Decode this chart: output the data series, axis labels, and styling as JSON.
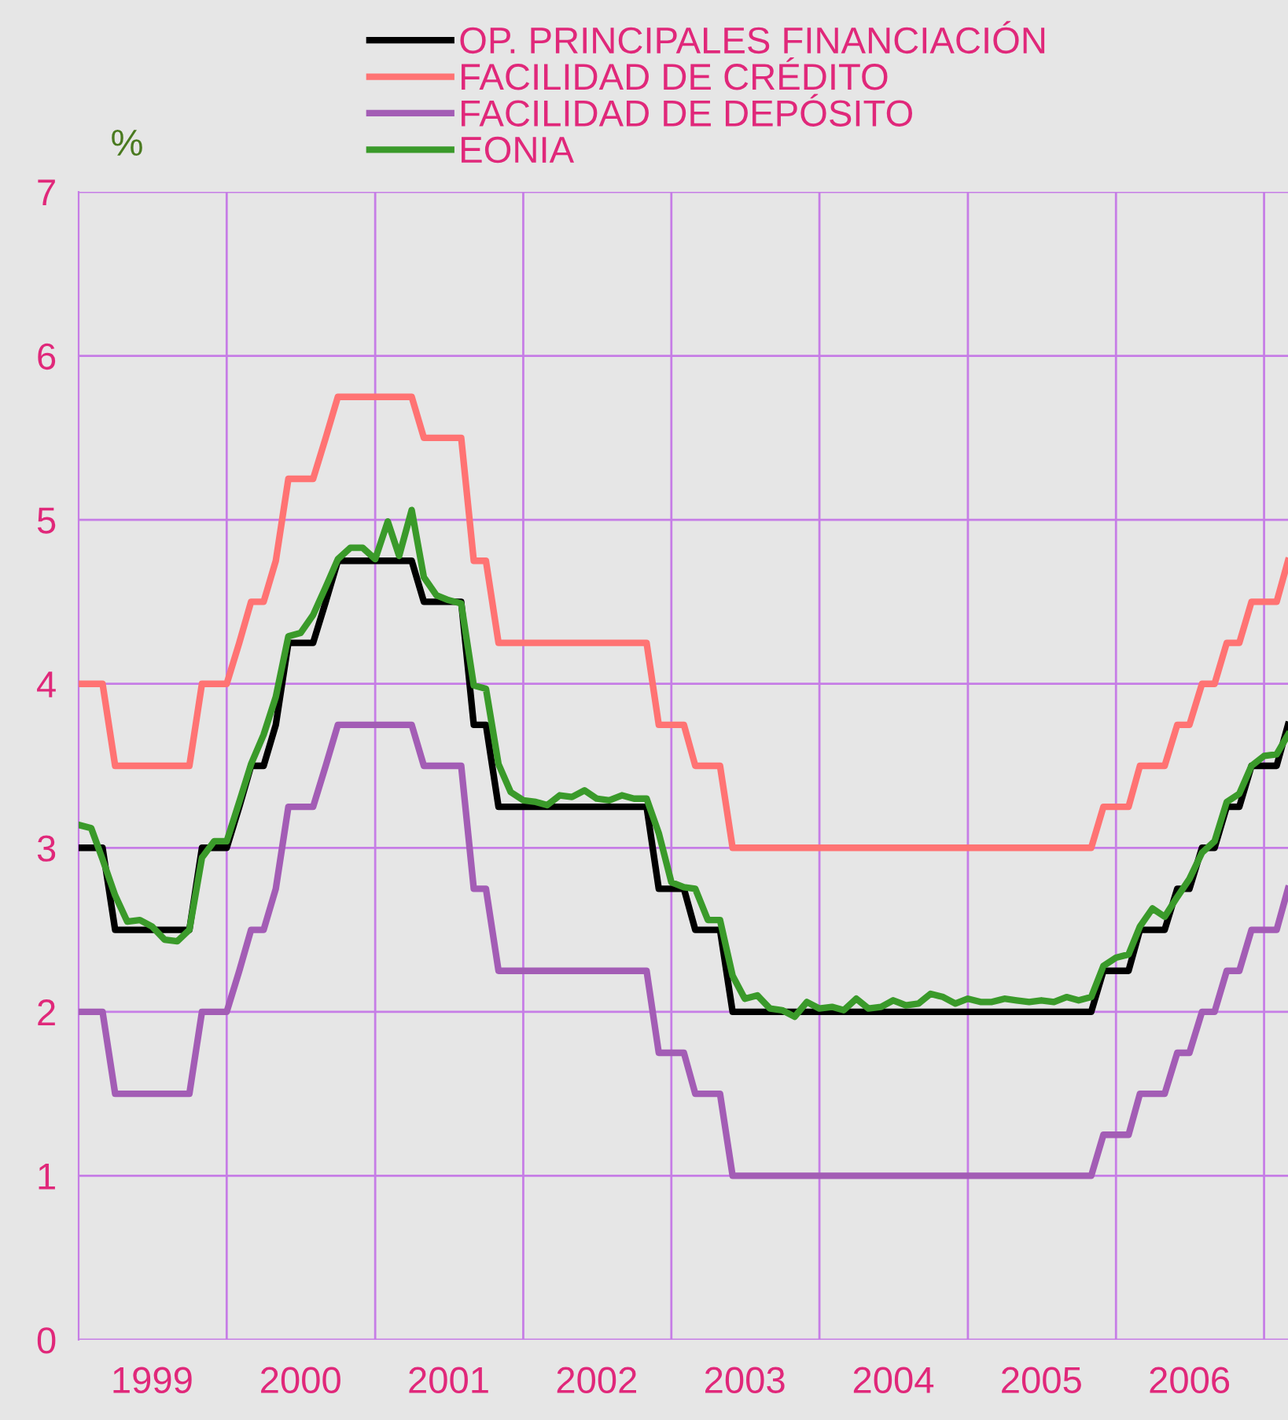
{
  "chart_data": {
    "type": "line",
    "ylabel": "%",
    "x": [
      "1999-01",
      "1999-02",
      "1999-03",
      "1999-04",
      "1999-05",
      "1999-06",
      "1999-07",
      "1999-08",
      "1999-09",
      "1999-10",
      "1999-11",
      "1999-12",
      "2000-01",
      "2000-02",
      "2000-03",
      "2000-04",
      "2000-05",
      "2000-06",
      "2000-07",
      "2000-08",
      "2000-09",
      "2000-10",
      "2000-11",
      "2000-12",
      "2001-01",
      "2001-02",
      "2001-03",
      "2001-04",
      "2001-05",
      "2001-06",
      "2001-07",
      "2001-08",
      "2001-09",
      "2001-10",
      "2001-11",
      "2001-12",
      "2002-01",
      "2002-02",
      "2002-03",
      "2002-04",
      "2002-05",
      "2002-06",
      "2002-07",
      "2002-08",
      "2002-09",
      "2002-10",
      "2002-11",
      "2002-12",
      "2003-01",
      "2003-02",
      "2003-03",
      "2003-04",
      "2003-05",
      "2003-06",
      "2003-07",
      "2003-08",
      "2003-09",
      "2003-10",
      "2003-11",
      "2003-12",
      "2004-01",
      "2004-02",
      "2004-03",
      "2004-04",
      "2004-05",
      "2004-06",
      "2004-07",
      "2004-08",
      "2004-09",
      "2004-10",
      "2004-11",
      "2004-12",
      "2005-01",
      "2005-02",
      "2005-03",
      "2005-04",
      "2005-05",
      "2005-06",
      "2005-07",
      "2005-08",
      "2005-09",
      "2005-10",
      "2005-11",
      "2005-12",
      "2006-01",
      "2006-02",
      "2006-03",
      "2006-04",
      "2006-05",
      "2006-06",
      "2006-07",
      "2006-08",
      "2006-09",
      "2006-10",
      "2006-11",
      "2006-12",
      "2007-01",
      "2007-02",
      "2007-03"
    ],
    "series": [
      {
        "name": "OP. PRINCIPALES FINANCIACIÓN",
        "color": "#000000",
        "x": [
          "1999-01",
          "1999-03",
          "1999-04",
          "1999-10",
          "1999-11",
          "2000-01",
          "2000-02",
          "2000-03",
          "2000-04",
          "2000-05",
          "2000-06",
          "2000-08",
          "2000-09",
          "2000-10",
          "2001-04",
          "2001-05",
          "2001-08",
          "2001-09",
          "2001-10",
          "2001-11",
          "2002-11",
          "2002-12",
          "2003-02",
          "2003-03",
          "2003-05",
          "2003-06",
          "2005-11",
          "2005-12",
          "2006-02",
          "2006-03",
          "2006-05",
          "2006-06",
          "2006-07",
          "2006-08",
          "2006-09",
          "2006-10",
          "2006-11",
          "2006-12",
          "2007-02",
          "2007-03"
        ],
        "values": [
          3.0,
          3.0,
          2.5,
          2.5,
          3.0,
          3.0,
          3.25,
          3.5,
          3.5,
          3.75,
          4.25,
          4.25,
          4.5,
          4.75,
          4.75,
          4.5,
          4.5,
          3.75,
          3.75,
          3.25,
          3.25,
          2.75,
          2.75,
          2.5,
          2.5,
          2.0,
          2.0,
          2.25,
          2.25,
          2.5,
          2.5,
          2.75,
          2.75,
          3.0,
          3.0,
          3.25,
          3.25,
          3.5,
          3.5,
          3.75
        ]
      },
      {
        "name": "FACILIDAD DE CRÉDITO",
        "color": "#ff7373",
        "x": [
          "1999-01",
          "1999-03",
          "1999-04",
          "1999-10",
          "1999-11",
          "2000-01",
          "2000-02",
          "2000-03",
          "2000-04",
          "2000-05",
          "2000-06",
          "2000-08",
          "2000-09",
          "2000-10",
          "2001-04",
          "2001-05",
          "2001-08",
          "2001-09",
          "2001-10",
          "2001-11",
          "2002-11",
          "2002-12",
          "2003-02",
          "2003-03",
          "2003-05",
          "2003-06",
          "2005-11",
          "2005-12",
          "2006-02",
          "2006-03",
          "2006-05",
          "2006-06",
          "2006-07",
          "2006-08",
          "2006-09",
          "2006-10",
          "2006-11",
          "2006-12",
          "2007-02",
          "2007-03"
        ],
        "values": [
          4.0,
          4.0,
          3.5,
          3.5,
          4.0,
          4.0,
          4.25,
          4.5,
          4.5,
          4.75,
          5.25,
          5.25,
          5.5,
          5.75,
          5.75,
          5.5,
          5.5,
          4.75,
          4.75,
          4.25,
          4.25,
          3.75,
          3.75,
          3.5,
          3.5,
          3.0,
          3.0,
          3.25,
          3.25,
          3.5,
          3.5,
          3.75,
          3.75,
          4.0,
          4.0,
          4.25,
          4.25,
          4.5,
          4.5,
          4.75
        ]
      },
      {
        "name": "FACILIDAD DE DEPÓSITO",
        "color": "#a35db5",
        "x": [
          "1999-01",
          "1999-03",
          "1999-04",
          "1999-10",
          "1999-11",
          "2000-01",
          "2000-02",
          "2000-03",
          "2000-04",
          "2000-05",
          "2000-06",
          "2000-08",
          "2000-09",
          "2000-10",
          "2001-04",
          "2001-05",
          "2001-08",
          "2001-09",
          "2001-10",
          "2001-11",
          "2002-11",
          "2002-12",
          "2003-02",
          "2003-03",
          "2003-05",
          "2003-06",
          "2005-11",
          "2005-12",
          "2006-02",
          "2006-03",
          "2006-05",
          "2006-06",
          "2006-07",
          "2006-08",
          "2006-09",
          "2006-10",
          "2006-11",
          "2006-12",
          "2007-02",
          "2007-03"
        ],
        "values": [
          2.0,
          2.0,
          1.5,
          1.5,
          2.0,
          2.0,
          2.25,
          2.5,
          2.5,
          2.75,
          3.25,
          3.25,
          3.5,
          3.75,
          3.75,
          3.5,
          3.5,
          2.75,
          2.75,
          2.25,
          2.25,
          1.75,
          1.75,
          1.5,
          1.5,
          1.0,
          1.0,
          1.25,
          1.25,
          1.5,
          1.5,
          1.75,
          1.75,
          2.0,
          2.0,
          2.25,
          2.25,
          2.5,
          2.5,
          2.75
        ]
      },
      {
        "name": "EONIA",
        "color": "#3a9a2a",
        "values": [
          3.14,
          3.12,
          2.93,
          2.71,
          2.55,
          2.56,
          2.52,
          2.44,
          2.43,
          2.5,
          2.94,
          3.04,
          3.04,
          3.28,
          3.51,
          3.69,
          3.92,
          4.29,
          4.31,
          4.42,
          4.59,
          4.76,
          4.83,
          4.83,
          4.76,
          4.99,
          4.78,
          5.06,
          4.65,
          4.54,
          4.51,
          4.49,
          3.99,
          3.97,
          3.51,
          3.34,
          3.29,
          3.28,
          3.26,
          3.32,
          3.31,
          3.35,
          3.3,
          3.29,
          3.32,
          3.3,
          3.3,
          3.09,
          2.79,
          2.76,
          2.75,
          2.56,
          2.56,
          2.22,
          2.08,
          2.1,
          2.02,
          2.01,
          1.97,
          2.06,
          2.02,
          2.03,
          2.01,
          2.08,
          2.02,
          2.03,
          2.07,
          2.04,
          2.05,
          2.11,
          2.09,
          2.05,
          2.08,
          2.06,
          2.06,
          2.08,
          2.07,
          2.06,
          2.07,
          2.06,
          2.09,
          2.07,
          2.09,
          2.28,
          2.33,
          2.35,
          2.52,
          2.63,
          2.58,
          2.7,
          2.81,
          2.97,
          3.04,
          3.28,
          3.33,
          3.5,
          3.56,
          3.57,
          3.69
        ]
      }
    ],
    "xlim": [
      "1999-01",
      "2007-03"
    ],
    "xticks": [
      {
        "value": "1999-07",
        "label": "1999"
      },
      {
        "value": "2000-01",
        "label": null
      },
      {
        "value": "2000-07",
        "label": "2000"
      },
      {
        "value": "2001-01",
        "label": null
      },
      {
        "value": "2001-07",
        "label": "2001"
      },
      {
        "value": "2002-01",
        "label": null
      },
      {
        "value": "2002-07",
        "label": "2002"
      },
      {
        "value": "2003-01",
        "label": null
      },
      {
        "value": "2003-07",
        "label": "2003"
      },
      {
        "value": "2004-01",
        "label": null
      },
      {
        "value": "2004-07",
        "label": "2004"
      },
      {
        "value": "2005-01",
        "label": null
      },
      {
        "value": "2005-07",
        "label": "2005"
      },
      {
        "value": "2006-01",
        "label": null
      },
      {
        "value": "2006-07",
        "label": "2006"
      },
      {
        "value": "2007-01",
        "label": null
      }
    ],
    "ylim": [
      0,
      7
    ],
    "yticks": [
      0,
      1,
      2,
      3,
      4,
      5,
      6,
      7
    ],
    "grid": true,
    "legend": "top",
    "line_style": "solid",
    "marker": "none"
  }
}
